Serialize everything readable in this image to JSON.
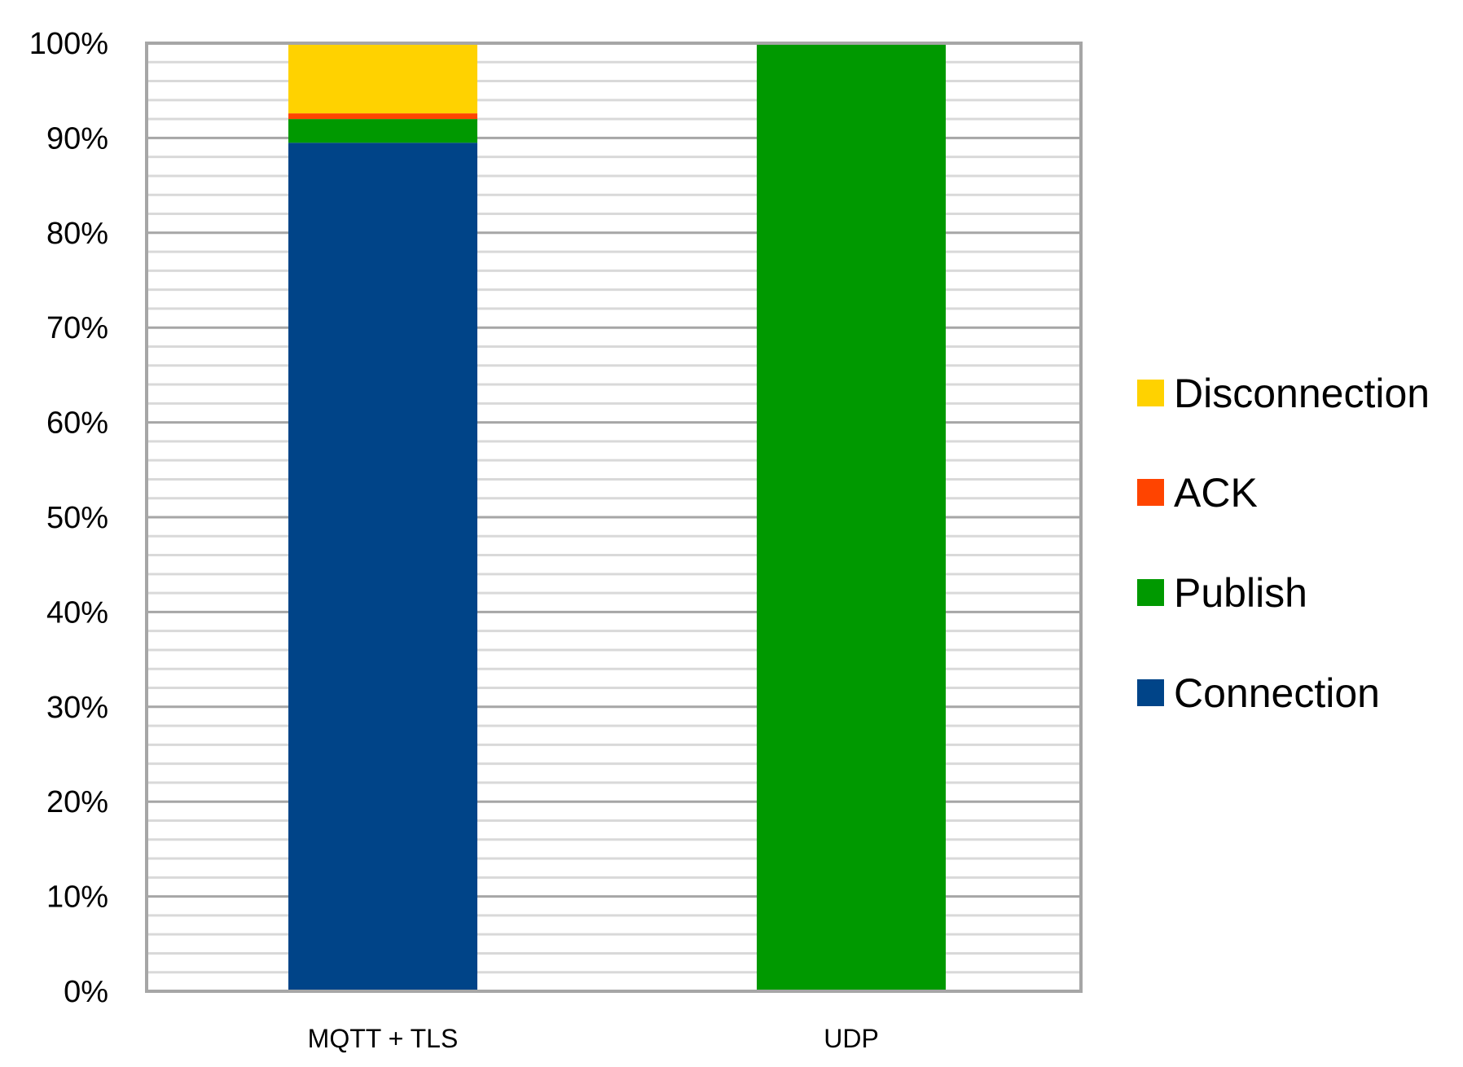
{
  "chart_data": {
    "type": "bar",
    "stacked": true,
    "normalized": true,
    "categories": [
      "MQTT + TLS",
      "UDP"
    ],
    "series": [
      {
        "name": "Connection",
        "color": "#004488",
        "values": [
          89.5,
          0
        ]
      },
      {
        "name": "Publish",
        "color": "#009900",
        "values": [
          2.5,
          100
        ]
      },
      {
        "name": "ACK",
        "color": "#ff4400",
        "values": [
          0.6,
          0
        ]
      },
      {
        "name": "Disconnection",
        "color": "#ffd200",
        "values": [
          7.4,
          0
        ]
      }
    ],
    "ylim": [
      0,
      100
    ],
    "yticks": [
      "0%",
      "10%",
      "20%",
      "30%",
      "40%",
      "50%",
      "60%",
      "70%",
      "80%",
      "90%",
      "100%"
    ],
    "grid": true,
    "legend_position": "right",
    "legend_order": [
      "Disconnection",
      "ACK",
      "Publish",
      "Connection"
    ]
  }
}
